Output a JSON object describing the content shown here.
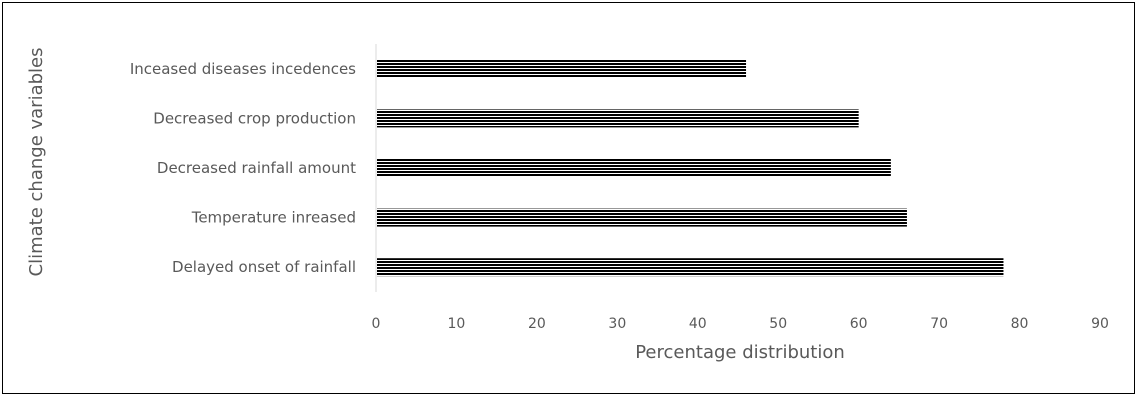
{
  "chart_data": {
    "type": "bar",
    "orientation": "horizontal",
    "categories": [
      "Delayed onset of rainfall",
      "Temperature inreased",
      "Decreased rainfall amount",
      "Decreased crop production",
      "Inceased diseases incedences"
    ],
    "values": [
      78,
      66,
      64,
      60,
      46
    ],
    "xlabel": "Percentage distribution",
    "ylabel": "Climate change variables",
    "xlim": [
      0,
      90
    ],
    "xticks": [
      "0",
      "10",
      "20",
      "30",
      "40",
      "50",
      "60",
      "70",
      "80",
      "90"
    ],
    "grid": false,
    "legend": "none",
    "bar_color": "#000000",
    "bar_pattern": "horizontal-stripes"
  }
}
